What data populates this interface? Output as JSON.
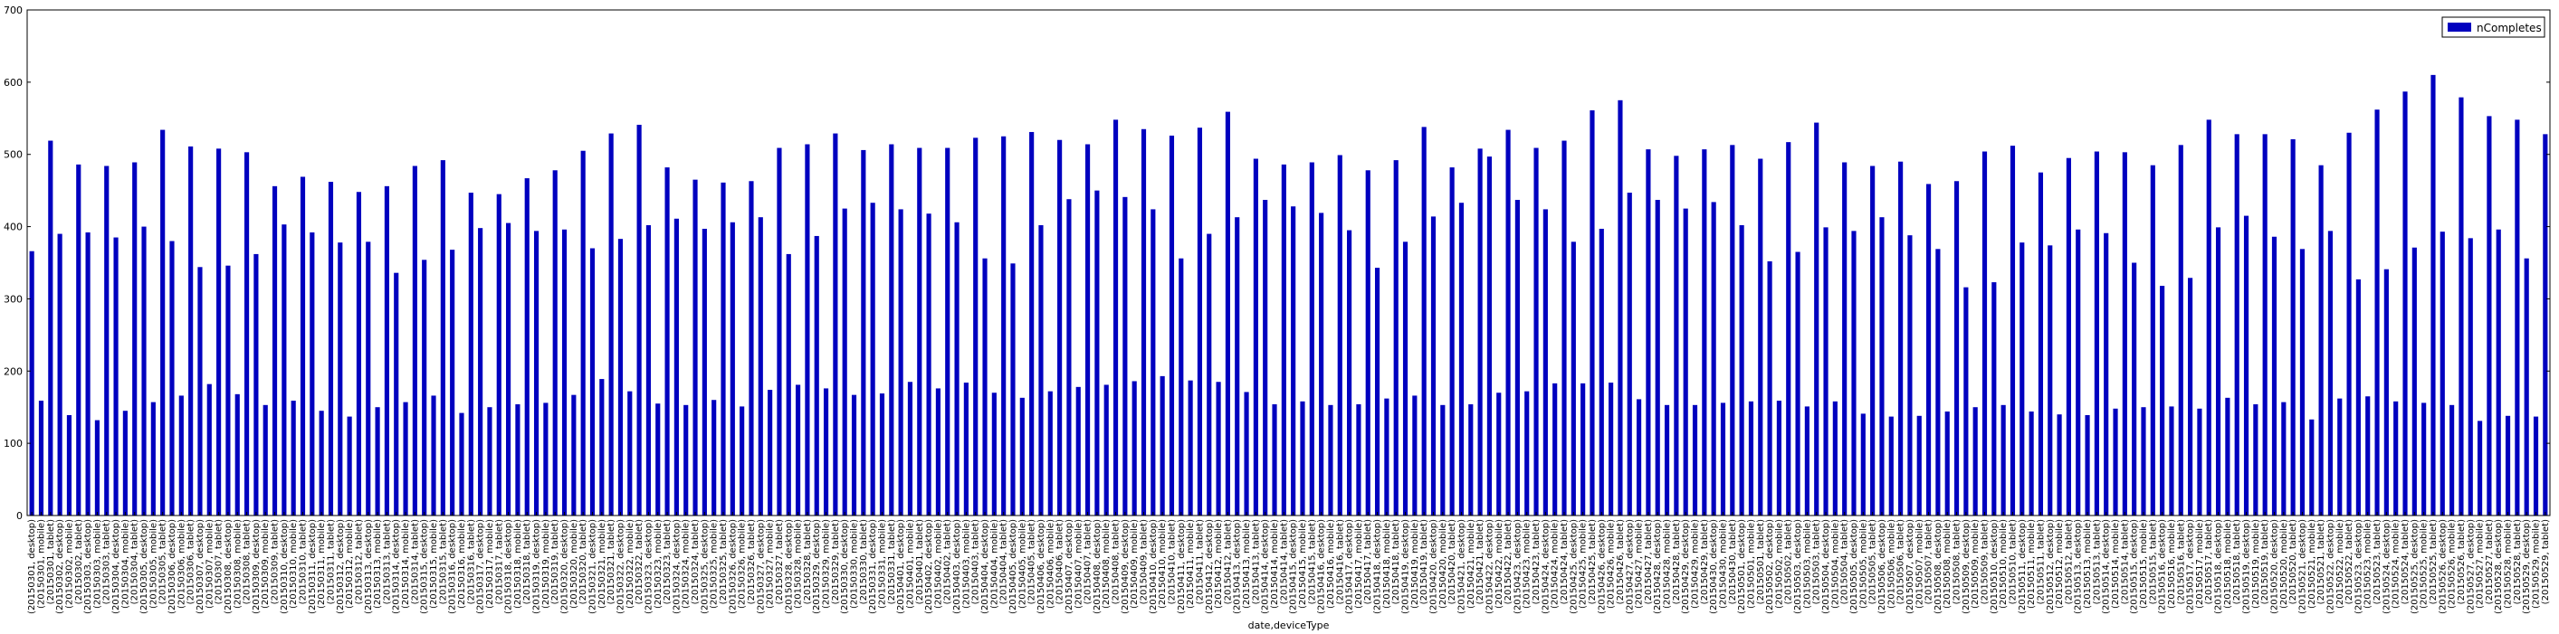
{
  "chart_data": {
    "type": "bar",
    "xlabel": "date,deviceType",
    "ylabel": "",
    "ylim": [
      0,
      700
    ],
    "yticks": [
      0,
      100,
      200,
      300,
      400,
      500,
      600,
      700
    ],
    "grid": false,
    "legend": {
      "position": "top-right",
      "entries": [
        "nCompletes"
      ]
    },
    "series": [
      {
        "name": "nCompletes",
        "color": "#0000bf",
        "values": [
          366,
          159,
          519,
          390,
          139,
          486,
          392,
          132,
          484,
          385,
          145,
          489,
          400,
          157,
          534,
          380,
          166,
          511,
          344,
          182,
          508,
          346,
          168,
          503,
          362,
          153,
          456,
          403,
          159,
          469,
          392,
          145,
          462,
          378,
          137,
          448,
          379,
          150,
          456,
          336,
          157,
          484,
          354,
          166,
          492,
          368,
          142,
          447,
          398,
          150,
          445,
          405,
          154,
          467,
          394,
          156,
          478,
          396,
          167,
          505,
          370,
          189,
          529,
          383,
          172,
          541,
          402,
          155,
          482,
          411,
          153,
          465,
          397,
          160,
          461,
          406,
          151,
          463,
          413,
          174,
          509,
          362,
          181,
          514,
          387,
          176,
          529,
          425,
          167,
          506,
          433,
          169,
          514,
          424,
          185,
          509,
          418,
          176,
          509,
          406,
          184,
          523,
          356,
          170,
          525,
          349,
          163,
          531,
          402,
          172,
          520,
          438,
          178,
          514,
          450,
          181,
          548,
          441,
          186,
          535,
          424,
          193,
          526,
          356,
          187,
          537,
          390,
          185,
          559,
          413,
          171,
          494,
          437,
          154,
          486,
          428,
          158,
          489,
          419,
          153,
          499,
          395,
          154,
          478,
          343,
          162,
          492,
          379,
          166,
          538,
          414,
          153,
          482,
          433,
          154,
          508,
          497,
          170,
          534,
          437,
          172,
          509,
          424,
          183,
          519,
          379,
          183,
          561,
          397,
          184,
          575,
          447,
          161,
          507,
          437,
          153,
          498,
          425,
          153,
          507,
          434,
          156,
          513,
          402,
          158,
          494,
          352,
          159,
          517,
          365,
          151,
          544,
          399,
          158,
          489,
          394,
          141,
          484,
          413,
          137,
          490,
          388,
          138,
          459,
          369,
          144,
          463,
          316,
          150,
          504,
          323,
          153,
          512,
          378,
          144,
          475,
          374,
          140,
          495,
          396,
          139,
          504,
          391,
          148,
          503,
          350,
          150,
          485,
          318,
          151,
          513,
          329,
          148,
          548,
          399,
          163,
          528,
          415,
          154,
          528,
          386,
          157,
          521,
          369,
          133,
          485,
          394,
          162,
          530,
          327,
          165,
          562,
          341,
          158,
          587,
          371,
          156,
          610,
          393,
          153,
          579,
          384,
          131,
          553,
          396,
          138,
          548,
          356,
          137,
          528
        ]
      }
    ],
    "categories": [
      "(20150301, desktop)",
      "(20150301, mobile)",
      "(20150301, tablet)",
      "(20150302, desktop)",
      "(20150302, mobile)",
      "(20150302, tablet)",
      "(20150303, desktop)",
      "(20150303, mobile)",
      "(20150303, tablet)",
      "(20150304, desktop)",
      "(20150304, mobile)",
      "(20150304, tablet)",
      "(20150305, desktop)",
      "(20150305, mobile)",
      "(20150305, tablet)",
      "(20150306, desktop)",
      "(20150306, mobile)",
      "(20150306, tablet)",
      "(20150307, desktop)",
      "(20150307, mobile)",
      "(20150307, tablet)",
      "(20150308, desktop)",
      "(20150308, mobile)",
      "(20150308, tablet)",
      "(20150309, desktop)",
      "(20150309, mobile)",
      "(20150309, tablet)",
      "(20150310, desktop)",
      "(20150310, mobile)",
      "(20150310, tablet)",
      "(20150311, desktop)",
      "(20150311, mobile)",
      "(20150311, tablet)",
      "(20150312, desktop)",
      "(20150312, mobile)",
      "(20150312, tablet)",
      "(20150313, desktop)",
      "(20150313, mobile)",
      "(20150313, tablet)",
      "(20150314, desktop)",
      "(20150314, mobile)",
      "(20150314, tablet)",
      "(20150315, desktop)",
      "(20150315, mobile)",
      "(20150315, tablet)",
      "(20150316, desktop)",
      "(20150316, mobile)",
      "(20150316, tablet)",
      "(20150317, desktop)",
      "(20150317, mobile)",
      "(20150317, tablet)",
      "(20150318, desktop)",
      "(20150318, mobile)",
      "(20150318, tablet)",
      "(20150319, desktop)",
      "(20150319, mobile)",
      "(20150319, tablet)",
      "(20150320, desktop)",
      "(20150320, mobile)",
      "(20150320, tablet)",
      "(20150321, desktop)",
      "(20150321, mobile)",
      "(20150321, tablet)",
      "(20150322, desktop)",
      "(20150322, mobile)",
      "(20150322, tablet)",
      "(20150323, desktop)",
      "(20150323, mobile)",
      "(20150323, tablet)",
      "(20150324, desktop)",
      "(20150324, mobile)",
      "(20150324, tablet)",
      "(20150325, desktop)",
      "(20150325, mobile)",
      "(20150325, tablet)",
      "(20150326, desktop)",
      "(20150326, mobile)",
      "(20150326, tablet)",
      "(20150327, desktop)",
      "(20150327, mobile)",
      "(20150327, tablet)",
      "(20150328, desktop)",
      "(20150328, mobile)",
      "(20150328, tablet)",
      "(20150329, desktop)",
      "(20150329, mobile)",
      "(20150329, tablet)",
      "(20150330, desktop)",
      "(20150330, mobile)",
      "(20150330, tablet)",
      "(20150331, desktop)",
      "(20150331, mobile)",
      "(20150331, tablet)",
      "(20150401, desktop)",
      "(20150401, mobile)",
      "(20150401, tablet)",
      "(20150402, desktop)",
      "(20150402, mobile)",
      "(20150402, tablet)",
      "(20150403, desktop)",
      "(20150403, mobile)",
      "(20150403, tablet)",
      "(20150404, desktop)",
      "(20150404, mobile)",
      "(20150404, tablet)",
      "(20150405, desktop)",
      "(20150405, mobile)",
      "(20150405, tablet)",
      "(20150406, desktop)",
      "(20150406, mobile)",
      "(20150406, tablet)",
      "(20150407, desktop)",
      "(20150407, mobile)",
      "(20150407, tablet)",
      "(20150408, desktop)",
      "(20150408, mobile)",
      "(20150408, tablet)",
      "(20150409, desktop)",
      "(20150409, mobile)",
      "(20150409, tablet)",
      "(20150410, desktop)",
      "(20150410, mobile)",
      "(20150410, tablet)",
      "(20150411, desktop)",
      "(20150411, mobile)",
      "(20150411, tablet)",
      "(20150412, desktop)",
      "(20150412, mobile)",
      "(20150412, tablet)",
      "(20150413, desktop)",
      "(20150413, mobile)",
      "(20150413, tablet)",
      "(20150414, desktop)",
      "(20150414, mobile)",
      "(20150414, tablet)",
      "(20150415, desktop)",
      "(20150415, mobile)",
      "(20150415, tablet)",
      "(20150416, desktop)",
      "(20150416, mobile)",
      "(20150416, tablet)",
      "(20150417, desktop)",
      "(20150417, mobile)",
      "(20150417, tablet)",
      "(20150418, desktop)",
      "(20150418, mobile)",
      "(20150418, tablet)",
      "(20150419, desktop)",
      "(20150419, mobile)",
      "(20150419, tablet)",
      "(20150420, desktop)",
      "(20150420, mobile)",
      "(20150420, tablet)",
      "(20150421, desktop)",
      "(20150421, mobile)",
      "(20150421, tablet)",
      "(20150422, desktop)",
      "(20150422, mobile)",
      "(20150422, tablet)",
      "(20150423, desktop)",
      "(20150423, mobile)",
      "(20150423, tablet)",
      "(20150424, desktop)",
      "(20150424, mobile)",
      "(20150424, tablet)",
      "(20150425, desktop)",
      "(20150425, mobile)",
      "(20150425, tablet)",
      "(20150426, desktop)",
      "(20150426, mobile)",
      "(20150426, tablet)",
      "(20150427, desktop)",
      "(20150427, mobile)",
      "(20150427, tablet)",
      "(20150428, desktop)",
      "(20150428, mobile)",
      "(20150428, tablet)",
      "(20150429, desktop)",
      "(20150429, mobile)",
      "(20150429, tablet)",
      "(20150430, desktop)",
      "(20150430, mobile)",
      "(20150430, tablet)",
      "(20150501, desktop)",
      "(20150501, mobile)",
      "(20150501, tablet)",
      "(20150502, desktop)",
      "(20150502, mobile)",
      "(20150502, tablet)",
      "(20150503, desktop)",
      "(20150503, mobile)",
      "(20150503, tablet)",
      "(20150504, desktop)",
      "(20150504, mobile)",
      "(20150504, tablet)",
      "(20150505, desktop)",
      "(20150505, mobile)",
      "(20150505, tablet)",
      "(20150506, desktop)",
      "(20150506, mobile)",
      "(20150506, tablet)",
      "(20150507, desktop)",
      "(20150507, mobile)",
      "(20150507, tablet)",
      "(20150508, desktop)",
      "(20150508, mobile)",
      "(20150508, tablet)",
      "(20150509, desktop)",
      "(20150509, mobile)",
      "(20150509, tablet)",
      "(20150510, desktop)",
      "(20150510, mobile)",
      "(20150510, tablet)",
      "(20150511, desktop)",
      "(20150511, mobile)",
      "(20150511, tablet)",
      "(20150512, desktop)",
      "(20150512, mobile)",
      "(20150512, tablet)",
      "(20150513, desktop)",
      "(20150513, mobile)",
      "(20150513, tablet)",
      "(20150514, desktop)",
      "(20150514, mobile)",
      "(20150514, tablet)",
      "(20150515, desktop)",
      "(20150515, mobile)",
      "(20150515, tablet)",
      "(20150516, desktop)",
      "(20150516, mobile)",
      "(20150516, tablet)",
      "(20150517, desktop)",
      "(20150517, mobile)",
      "(20150517, tablet)",
      "(20150518, desktop)",
      "(20150518, mobile)",
      "(20150518, tablet)",
      "(20150519, desktop)",
      "(20150519, mobile)",
      "(20150519, tablet)",
      "(20150520, desktop)",
      "(20150520, mobile)",
      "(20150520, tablet)",
      "(20150521, desktop)",
      "(20150521, mobile)",
      "(20150521, tablet)",
      "(20150522, desktop)",
      "(20150522, mobile)",
      "(20150522, tablet)",
      "(20150523, desktop)",
      "(20150523, mobile)",
      "(20150523, tablet)",
      "(20150524, desktop)",
      "(20150524, mobile)",
      "(20150524, tablet)",
      "(20150525, desktop)",
      "(20150525, mobile)",
      "(20150525, tablet)",
      "(20150526, desktop)",
      "(20150526, mobile)",
      "(20150526, tablet)",
      "(20150527, desktop)",
      "(20150527, mobile)",
      "(20150527, tablet)",
      "(20150528, desktop)",
      "(20150528, mobile)",
      "(20150528, tablet)",
      "(20150529, desktop)",
      "(20150529, mobile)",
      "(20150529, tablet)"
    ]
  }
}
